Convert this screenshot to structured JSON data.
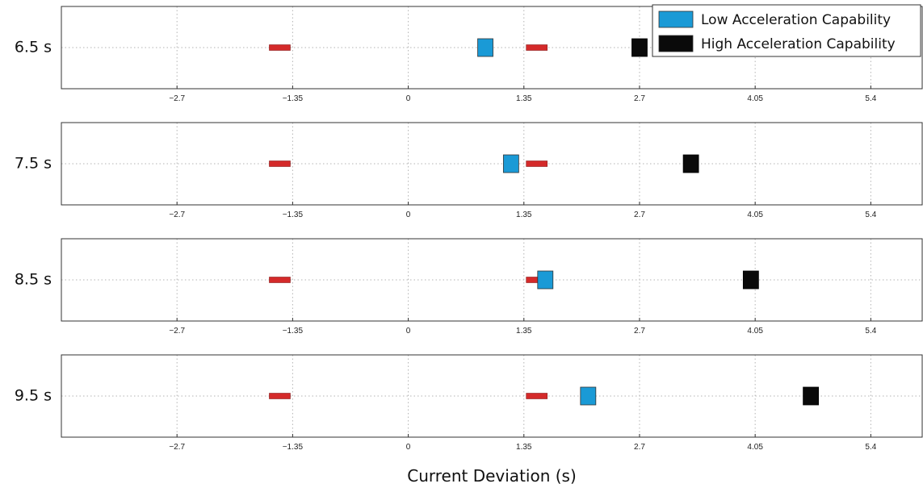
{
  "chart_data": {
    "type": "scatter",
    "xlabel": "Current Deviation (s)",
    "xticks": [
      -2.7,
      -1.35,
      0,
      1.35,
      2.7,
      4.05,
      5.4
    ],
    "xtick_labels": [
      "−2.7",
      "−1.35",
      "0",
      "1.35",
      "2.7",
      "4.05",
      "5.4"
    ],
    "xlim": [
      -4.05,
      6.0
    ],
    "grid": true,
    "legend": {
      "placement": "top-right",
      "entries": [
        {
          "label": "Low Acceleration Capability",
          "color": "#1a9ad6"
        },
        {
          "label": "High Acceleration Capability",
          "color": "#0a0a0a"
        }
      ]
    },
    "bounds_color": "#d42a2a",
    "bounds": [
      -1.5,
      1.5
    ],
    "rows": [
      {
        "label": "6.5 s",
        "low": 0.9,
        "high": 2.7
      },
      {
        "label": "7.5 s",
        "low": 1.2,
        "high": 3.3
      },
      {
        "label": "8.5 s",
        "low": 1.6,
        "high": 4.0
      },
      {
        "label": "9.5 s",
        "low": 2.1,
        "high": 4.7
      }
    ]
  }
}
